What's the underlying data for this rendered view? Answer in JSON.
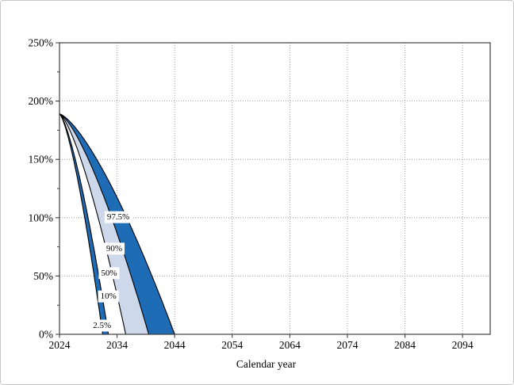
{
  "chart_data": {
    "type": "area",
    "variant": "percentile-fan",
    "title": "",
    "xlabel": "Calendar year",
    "ylabel": "",
    "x_range": [
      2024,
      2098.8
    ],
    "y_range": [
      0,
      250
    ],
    "x_ticks": [
      2024,
      2034,
      2044,
      2054,
      2064,
      2074,
      2084,
      2094
    ],
    "y_ticks": [
      0,
      50,
      100,
      150,
      200,
      250
    ],
    "y_tick_labels": [
      "0%",
      "50%",
      "100%",
      "150%",
      "200%",
      "250%"
    ],
    "y_minor_tick_step": 25,
    "grid": true,
    "legend_position": "none",
    "start_year": 2024,
    "start_ratio_pct": 189,
    "curve_exponent": 1.4,
    "percentiles": [
      {
        "label": "2.5%",
        "zero_year": 2031.5,
        "points": [
          [
            2024,
            189
          ],
          [
            2026,
            159
          ],
          [
            2028,
            111
          ],
          [
            2030,
            51
          ],
          [
            2031,
            17
          ],
          [
            2031.5,
            0
          ]
        ]
      },
      {
        "label": "10%",
        "zero_year": 2032.5,
        "points": [
          [
            2024,
            189
          ],
          [
            2026,
            164
          ],
          [
            2028,
            123
          ],
          [
            2030,
            73
          ],
          [
            2032,
            15
          ],
          [
            2032.5,
            0
          ]
        ]
      },
      {
        "label": "50%",
        "zero_year": 2035.5,
        "points": [
          [
            2024,
            189
          ],
          [
            2026,
            173
          ],
          [
            2028,
            146
          ],
          [
            2030,
            113
          ],
          [
            2032,
            75
          ],
          [
            2034,
            34
          ],
          [
            2035.5,
            0
          ]
        ]
      },
      {
        "label": "90%",
        "zero_year": 2039.5,
        "points": [
          [
            2024,
            189
          ],
          [
            2026,
            178
          ],
          [
            2028,
            161
          ],
          [
            2030,
            139
          ],
          [
            2032,
            114
          ],
          [
            2034,
            87
          ],
          [
            2036,
            57
          ],
          [
            2038,
            25
          ],
          [
            2039.5,
            0
          ]
        ]
      },
      {
        "label": "97.5%",
        "zero_year": 2044,
        "points": [
          [
            2024,
            189
          ],
          [
            2026,
            182
          ],
          [
            2028,
            169
          ],
          [
            2030,
            154
          ],
          [
            2032,
            137
          ],
          [
            2034,
            117
          ],
          [
            2036,
            97
          ],
          [
            2038,
            74
          ],
          [
            2040,
            51
          ],
          [
            2042,
            26
          ],
          [
            2044,
            0
          ]
        ]
      }
    ],
    "bands": [
      {
        "from": "2.5%",
        "to": "10%",
        "color": "#1e6cb5"
      },
      {
        "from": "10%",
        "to": "50%",
        "color": "#ffffff"
      },
      {
        "from": "50%",
        "to": "90%",
        "color": "#cdd9eb"
      },
      {
        "from": "90%",
        "to": "97.5%",
        "color": "#1e6cb5"
      }
    ],
    "line_labels": [
      {
        "text": "97.5%",
        "year": 2034.2,
        "ratio": 101
      },
      {
        "text": "90%",
        "year": 2033.5,
        "ratio": 74
      },
      {
        "text": "50%",
        "year": 2032.6,
        "ratio": 53
      },
      {
        "text": "10%",
        "year": 2032.5,
        "ratio": 33
      },
      {
        "text": "2.5%",
        "year": 2031.4,
        "ratio": 8
      }
    ],
    "colors": {
      "band_dark": "#1e6cb5",
      "band_light": "#cdd9eb",
      "band_white": "#ffffff",
      "line": "#000000",
      "grid": "#8a8a8a",
      "axis": "#3f3f3f",
      "background": "#ffffff"
    }
  }
}
